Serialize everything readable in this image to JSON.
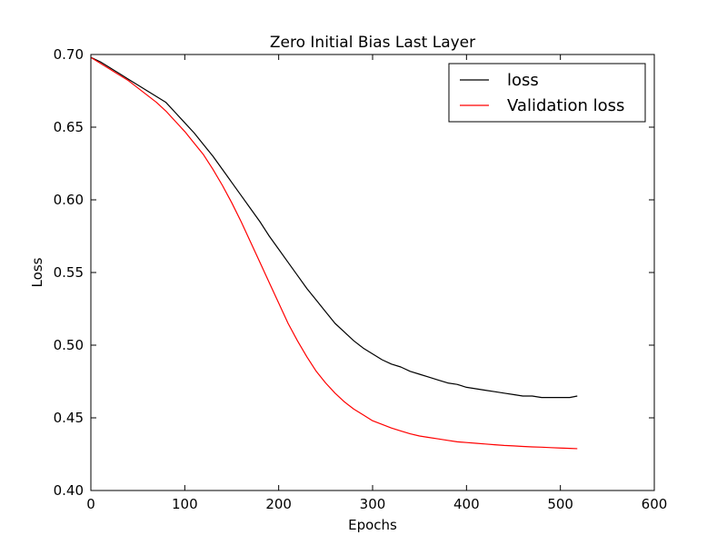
{
  "chart_data": {
    "type": "line",
    "title": "Zero Initial Bias Last Layer",
    "xlabel": "Epochs",
    "ylabel": "Loss",
    "xlim": [
      0,
      600
    ],
    "ylim": [
      0.4,
      0.7
    ],
    "xticks": [
      0,
      100,
      200,
      300,
      400,
      500,
      600
    ],
    "yticks": [
      0.4,
      0.45,
      0.5,
      0.55,
      0.6,
      0.65,
      0.7
    ],
    "xtick_labels": [
      "0",
      "100",
      "200",
      "300",
      "400",
      "500",
      "600"
    ],
    "ytick_labels": [
      "0.40",
      "0.45",
      "0.50",
      "0.55",
      "0.60",
      "0.65",
      "0.70"
    ],
    "grid": false,
    "legend_position": "top-right",
    "series": [
      {
        "name": "loss",
        "color": "#000000",
        "x": [
          0,
          10,
          20,
          30,
          40,
          50,
          60,
          70,
          80,
          90,
          100,
          110,
          120,
          130,
          140,
          150,
          160,
          170,
          180,
          190,
          200,
          210,
          220,
          230,
          240,
          250,
          260,
          270,
          280,
          290,
          300,
          310,
          320,
          330,
          340,
          350,
          360,
          370,
          380,
          390,
          400,
          410,
          420,
          430,
          440,
          450,
          460,
          470,
          480,
          490,
          500,
          510,
          518
        ],
        "y": [
          0.698,
          0.695,
          0.691,
          0.687,
          0.683,
          0.679,
          0.675,
          0.671,
          0.667,
          0.66,
          0.653,
          0.646,
          0.638,
          0.63,
          0.621,
          0.612,
          0.603,
          0.594,
          0.585,
          0.575,
          0.566,
          0.557,
          0.548,
          0.539,
          0.531,
          0.523,
          0.515,
          0.509,
          0.503,
          0.498,
          0.494,
          0.49,
          0.487,
          0.485,
          0.482,
          0.48,
          0.478,
          0.476,
          0.474,
          0.473,
          0.471,
          0.47,
          0.469,
          0.468,
          0.467,
          0.466,
          0.465,
          0.465,
          0.464,
          0.464,
          0.464,
          0.464,
          0.465
        ]
      },
      {
        "name": "Validation loss",
        "color": "#ff0000",
        "x": [
          0,
          10,
          20,
          30,
          40,
          50,
          60,
          70,
          80,
          90,
          100,
          110,
          120,
          130,
          140,
          150,
          160,
          170,
          180,
          190,
          200,
          210,
          220,
          230,
          240,
          250,
          260,
          270,
          280,
          290,
          300,
          310,
          320,
          330,
          340,
          350,
          360,
          370,
          380,
          390,
          400,
          410,
          420,
          430,
          440,
          450,
          460,
          470,
          480,
          490,
          500,
          510,
          518
        ],
        "y": [
          0.698,
          0.694,
          0.69,
          0.686,
          0.682,
          0.677,
          0.672,
          0.667,
          0.661,
          0.654,
          0.647,
          0.639,
          0.631,
          0.621,
          0.61,
          0.598,
          0.585,
          0.571,
          0.557,
          0.543,
          0.529,
          0.515,
          0.503,
          0.492,
          0.482,
          0.474,
          0.467,
          0.461,
          0.456,
          0.452,
          0.448,
          0.4455,
          0.443,
          0.441,
          0.439,
          0.4375,
          0.4365,
          0.4355,
          0.4345,
          0.4335,
          0.433,
          0.4325,
          0.432,
          0.4315,
          0.431,
          0.4307,
          0.4303,
          0.43,
          0.4298,
          0.4295,
          0.4292,
          0.429,
          0.4288
        ]
      }
    ]
  }
}
